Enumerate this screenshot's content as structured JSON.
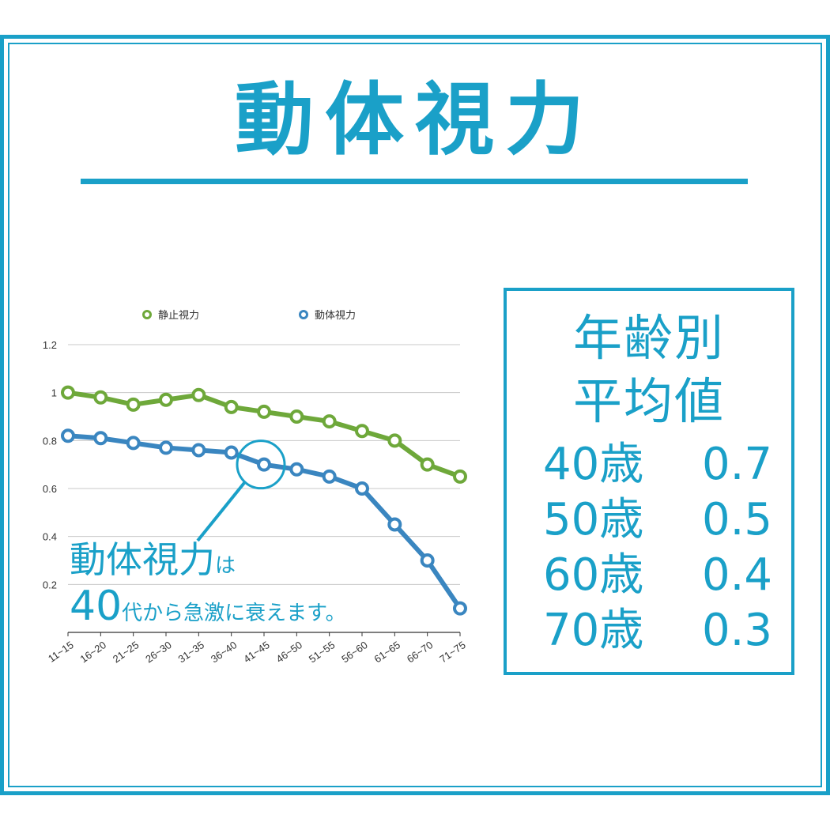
{
  "title": "動体視力",
  "colors": {
    "accent": "#1aa0c8",
    "series_static": "#6ea83a",
    "series_dynamic": "#3a86c0"
  },
  "callout": {
    "line1_big": "動体視力",
    "line1_small": "は",
    "line2_big": "40",
    "line2_small": "代から急激に衰えます。"
  },
  "average_box": {
    "heading_line1": "年齢別",
    "heading_line2": "平均値",
    "rows": [
      {
        "age": "40歳",
        "value": "0.7"
      },
      {
        "age": "50歳",
        "value": "0.5"
      },
      {
        "age": "60歳",
        "value": "0.4"
      },
      {
        "age": "70歳",
        "value": "0.3"
      }
    ]
  },
  "chart_data": {
    "type": "line",
    "categories": [
      "11~15",
      "16~20",
      "21~25",
      "26~30",
      "31~35",
      "36~40",
      "41~45",
      "46~50",
      "51~55",
      "56~60",
      "61~65",
      "66~70",
      "71~75"
    ],
    "series": [
      {
        "name": "静止視力",
        "values": [
          1.0,
          0.98,
          0.95,
          0.97,
          0.99,
          0.94,
          0.92,
          0.9,
          0.88,
          0.84,
          0.8,
          0.7,
          0.65
        ]
      },
      {
        "name": "動体視力",
        "values": [
          0.82,
          0.81,
          0.79,
          0.77,
          0.76,
          0.75,
          0.7,
          0.68,
          0.65,
          0.6,
          0.45,
          0.3,
          0.1
        ]
      }
    ],
    "yticks": [
      "1.2",
      "1",
      "0.8",
      "0.6",
      "0.4",
      "0.2"
    ],
    "ylim": [
      0,
      1.2
    ],
    "grid": true,
    "legend": "top",
    "highlight_category": "41~45"
  }
}
